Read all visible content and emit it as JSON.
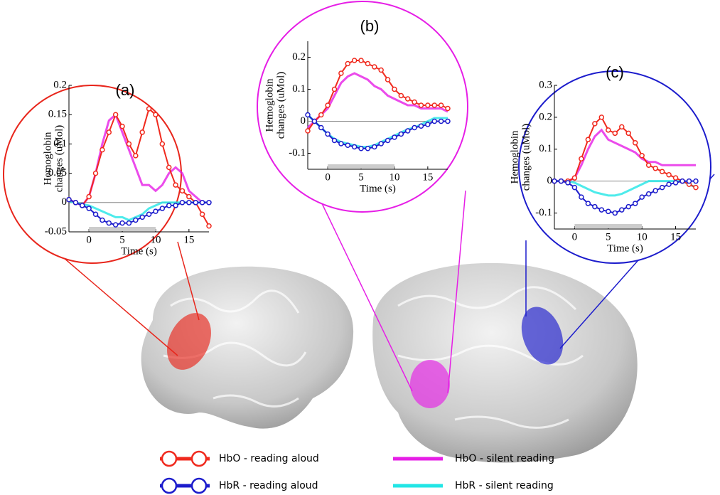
{
  "chart_data": [
    {
      "type": "line",
      "title": "(a)",
      "y_label": [
        "Hemoglobin",
        "changes (uMol)"
      ],
      "x_label": "Time (s)",
      "xlim": [
        -3,
        18
      ],
      "xticks": [
        0,
        5,
        10,
        15
      ],
      "ylim": [
        -0.05,
        0.2
      ],
      "yticks": [
        -0.05,
        0,
        0.05,
        0.1,
        0.15,
        0.2
      ],
      "stimulus": [
        0,
        10
      ],
      "circle_color": "#e8261c",
      "x": [
        -3,
        -2,
        -1,
        0,
        1,
        2,
        3,
        4,
        5,
        6,
        7,
        8,
        9,
        10,
        11,
        12,
        13,
        14,
        15,
        16,
        17,
        18
      ],
      "series": [
        {
          "name": "HbO - reading aloud",
          "color": "#f02a1e",
          "marker": true,
          "values": [
            0.005,
            0,
            -0.005,
            0.01,
            0.05,
            0.09,
            0.12,
            0.15,
            0.13,
            0.1,
            0.08,
            0.12,
            0.16,
            0.15,
            0.1,
            0.06,
            0.03,
            0.02,
            0.01,
            0,
            -0.02,
            -0.04
          ]
        },
        {
          "name": "HbR - reading aloud",
          "color": "#1c1ccc",
          "marker": true,
          "values": [
            0.005,
            0,
            -0.005,
            -0.01,
            -0.02,
            -0.03,
            -0.035,
            -0.038,
            -0.035,
            -0.035,
            -0.03,
            -0.025,
            -0.02,
            -0.015,
            -0.01,
            -0.005,
            -0.005,
            0,
            0,
            0,
            0,
            0
          ]
        },
        {
          "name": "HbO - silent reading",
          "color": "#e61ee6",
          "marker": false,
          "values": [
            0.005,
            0,
            -0.005,
            0.01,
            0.05,
            0.1,
            0.14,
            0.15,
            0.12,
            0.09,
            0.06,
            0.03,
            0.03,
            0.02,
            0.03,
            0.05,
            0.06,
            0.05,
            0.02,
            0.01,
            0,
            0
          ]
        },
        {
          "name": "HbR - silent reading",
          "color": "#22e6e6",
          "marker": false,
          "values": [
            0.002,
            0,
            -0.003,
            -0.005,
            -0.01,
            -0.015,
            -0.02,
            -0.025,
            -0.025,
            -0.03,
            -0.025,
            -0.02,
            -0.01,
            -0.005,
            0,
            0,
            0,
            0,
            0,
            0,
            0,
            0
          ]
        }
      ]
    },
    {
      "type": "line",
      "title": "(b)",
      "y_label": [
        "Hemoglobin",
        "changes (uMol)"
      ],
      "x_label": "Time (s)",
      "xlim": [
        -3,
        18
      ],
      "xticks": [
        0,
        5,
        10,
        15
      ],
      "ylim": [
        -0.15,
        0.25
      ],
      "yticks": [
        -0.1,
        0,
        0.1,
        0.2
      ],
      "stimulus": [
        0,
        10
      ],
      "circle_color": "#e61ee6",
      "x": [
        -3,
        -2,
        -1,
        0,
        1,
        2,
        3,
        4,
        5,
        6,
        7,
        8,
        9,
        10,
        11,
        12,
        13,
        14,
        15,
        16,
        17,
        18
      ],
      "series": [
        {
          "color": "#f02a1e",
          "marker": true,
          "values": [
            -0.03,
            0,
            0.02,
            0.05,
            0.1,
            0.15,
            0.18,
            0.19,
            0.19,
            0.18,
            0.17,
            0.16,
            0.13,
            0.1,
            0.08,
            0.07,
            0.06,
            0.05,
            0.05,
            0.05,
            0.05,
            0.04
          ]
        },
        {
          "color": "#1c1ccc",
          "marker": true,
          "values": [
            0.02,
            0,
            -0.02,
            -0.04,
            -0.06,
            -0.07,
            -0.075,
            -0.08,
            -0.085,
            -0.085,
            -0.08,
            -0.07,
            -0.06,
            -0.05,
            -0.04,
            -0.03,
            -0.02,
            -0.015,
            -0.01,
            0,
            0,
            0
          ]
        },
        {
          "color": "#e61ee6",
          "marker": false,
          "values": [
            -0.02,
            0,
            0.02,
            0.04,
            0.08,
            0.12,
            0.14,
            0.15,
            0.14,
            0.13,
            0.11,
            0.1,
            0.08,
            0.07,
            0.06,
            0.05,
            0.05,
            0.04,
            0.04,
            0.04,
            0.04,
            0.03
          ]
        },
        {
          "color": "#22e6e6",
          "marker": false,
          "values": [
            0.02,
            0,
            -0.02,
            -0.04,
            -0.055,
            -0.065,
            -0.07,
            -0.075,
            -0.08,
            -0.08,
            -0.075,
            -0.065,
            -0.055,
            -0.045,
            -0.035,
            -0.025,
            -0.02,
            -0.01,
            0,
            0.01,
            0.01,
            0.01
          ]
        }
      ]
    },
    {
      "type": "line",
      "title": "(c)",
      "y_label": [
        "Hemoglobin",
        "changes (uMol)"
      ],
      "x_label": "Time (s)",
      "xlim": [
        -3,
        18
      ],
      "xticks": [
        0,
        5,
        10,
        15
      ],
      "ylim": [
        -0.15,
        0.3
      ],
      "yticks": [
        -0.1,
        0,
        0.1,
        0.2,
        0.3
      ],
      "stimulus": [
        0,
        10
      ],
      "circle_color": "#1c1ccc",
      "x": [
        -3,
        -2,
        -1,
        0,
        1,
        2,
        3,
        4,
        5,
        6,
        7,
        8,
        9,
        10,
        11,
        12,
        13,
        14,
        15,
        16,
        17,
        18
      ],
      "series": [
        {
          "color": "#f02a1e",
          "marker": true,
          "values": [
            0,
            0,
            0,
            0.01,
            0.07,
            0.13,
            0.18,
            0.2,
            0.16,
            0.15,
            0.17,
            0.15,
            0.12,
            0.08,
            0.05,
            0.04,
            0.03,
            0.02,
            0.01,
            0,
            -0.01,
            -0.02
          ]
        },
        {
          "color": "#1c1ccc",
          "marker": true,
          "values": [
            0,
            0,
            -0.005,
            -0.02,
            -0.05,
            -0.07,
            -0.08,
            -0.09,
            -0.095,
            -0.1,
            -0.09,
            -0.08,
            -0.07,
            -0.05,
            -0.04,
            -0.03,
            -0.02,
            -0.01,
            -0.005,
            0,
            0,
            0
          ]
        },
        {
          "color": "#e61ee6",
          "marker": false,
          "values": [
            0,
            0,
            0,
            0.01,
            0.05,
            0.1,
            0.14,
            0.16,
            0.13,
            0.12,
            0.11,
            0.1,
            0.09,
            0.07,
            0.06,
            0.06,
            0.05,
            0.05,
            0.05,
            0.05,
            0.05,
            0.05
          ]
        },
        {
          "color": "#22e6e6",
          "marker": false,
          "values": [
            0,
            0,
            0,
            -0.005,
            -0.015,
            -0.025,
            -0.035,
            -0.04,
            -0.045,
            -0.045,
            -0.04,
            -0.03,
            -0.02,
            -0.01,
            0,
            0,
            0,
            0,
            0,
            0,
            -0.01,
            -0.02
          ]
        }
      ]
    }
  ]
}
